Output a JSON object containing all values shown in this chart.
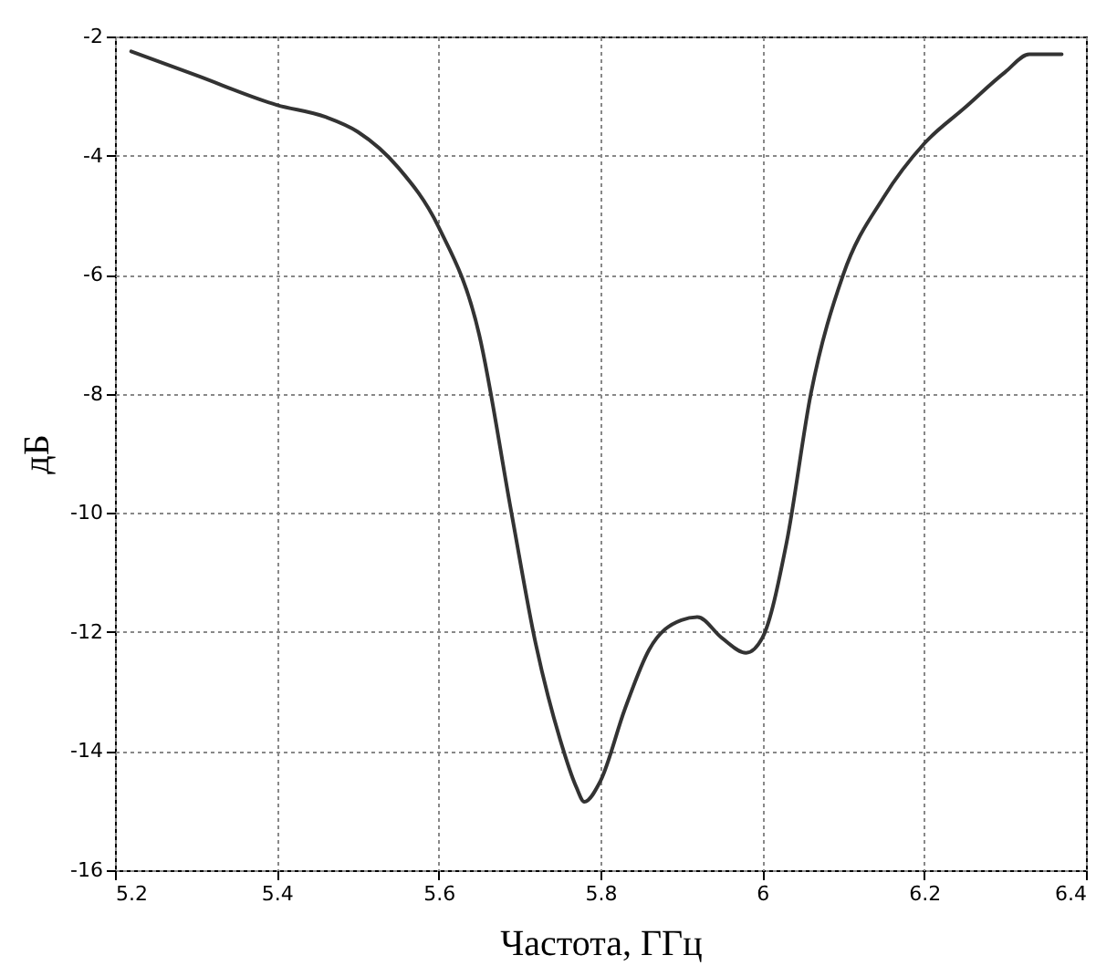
{
  "chart_data": {
    "type": "line",
    "xlabel": "Частота, ГГц",
    "ylabel": "дБ",
    "x": [
      5.22,
      5.3,
      5.4,
      5.46,
      5.5,
      5.55,
      5.6,
      5.65,
      5.69,
      5.72,
      5.75,
      5.77,
      5.78,
      5.8,
      5.83,
      5.86,
      5.9,
      5.92,
      5.95,
      5.98,
      6.0,
      6.03,
      6.06,
      6.1,
      6.15,
      6.2,
      6.25,
      6.3,
      6.33,
      6.37
    ],
    "series": [
      {
        "color": "#333333",
        "values": [
          -2.25,
          -2.65,
          -3.15,
          -3.35,
          -3.6,
          -4.2,
          -5.2,
          -7.0,
          -10.0,
          -12.2,
          -13.8,
          -14.6,
          -14.85,
          -14.5,
          -13.3,
          -12.3,
          -11.8,
          -11.75,
          -12.1,
          -12.35,
          -12.1,
          -10.5,
          -8.0,
          -6.0,
          -4.7,
          -3.8,
          -3.2,
          -2.6,
          -2.3,
          -2.3
        ]
      }
    ],
    "xlim": [
      5.2,
      6.4
    ],
    "xticks": [
      5.2,
      5.4,
      5.6,
      5.8,
      6,
      6.2,
      6.4
    ],
    "ylim": [
      -16,
      -2
    ],
    "yticks": [
      -16,
      -14,
      -12,
      -10,
      -8,
      -6,
      -4,
      -2
    ],
    "grid": true,
    "line_style": "solid",
    "marker": "none"
  }
}
